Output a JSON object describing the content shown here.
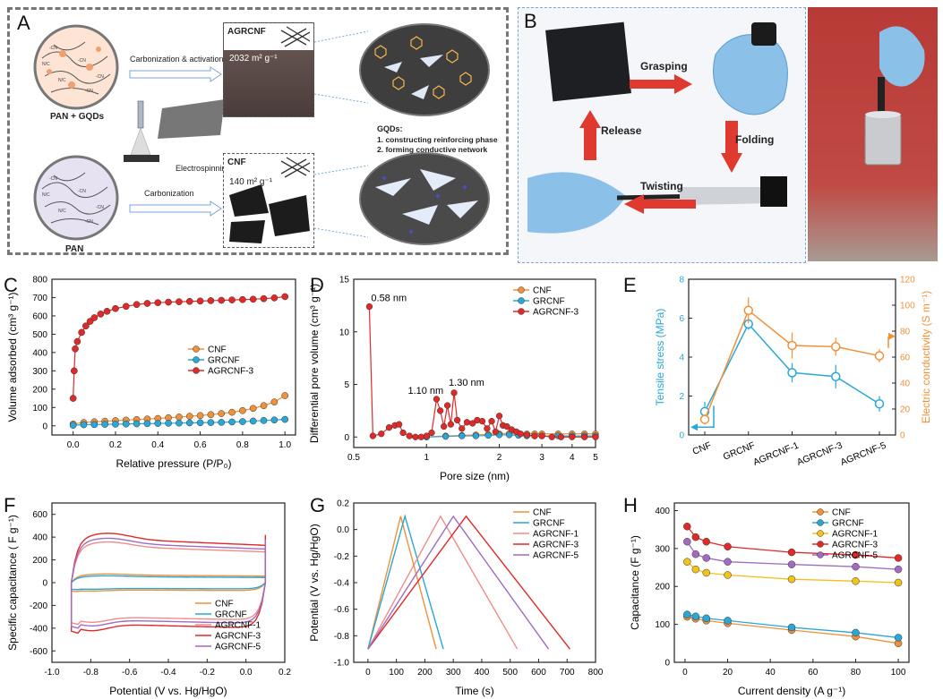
{
  "panel_a": {
    "label": "A",
    "pan_gqds": "PAN + GQDs",
    "pan": "PAN",
    "carb_act": "Carbonization & activation",
    "carb": "Carbonization",
    "electro": "Electrospinning",
    "agrcnf_title": "AGRCNF",
    "agrcnf_area": "2032 m² g⁻¹",
    "cnf_title": "CNF",
    "cnf_area": "140 m² g⁻¹",
    "gqds_title": "GQDs:",
    "gqds_1": "1. constructing reinforcing phase",
    "gqds_2": "2. forming conductive network",
    "molecule_tags": [
      "-CN",
      "-CN",
      "N/C",
      "-CN",
      "-CN",
      "N/C",
      "-CN",
      "-CN",
      "N/C",
      "-CN",
      "-CN",
      "N/C"
    ]
  },
  "panel_b": {
    "label": "B",
    "grasping": "Grasping",
    "folding": "Folding",
    "twisting": "Twisting",
    "release": "Release"
  },
  "colors": {
    "CNF": "#f0913a",
    "GRCNF": "#2aa7d6",
    "AGRCNF-1": "#f1c21b",
    "AGRCNF-3": "#e02a2a",
    "AGRCNF-5": "#a06cc0",
    "AGRCNF-1-F": "#f08c8c",
    "dash": "#777777"
  },
  "chart_data": [
    {
      "id": "C",
      "type": "scatter",
      "xlabel": "Relative pressure (P/P₀)",
      "ylabel": "Volume adsorbed (cm³ g⁻¹)",
      "xlim": [
        -0.1,
        1.05
      ],
      "ylim": [
        -50,
        800
      ],
      "xticks": [
        0.0,
        0.2,
        0.4,
        0.6,
        0.8,
        1.0
      ],
      "xtick_labels": [
        "0.0",
        "0.2",
        "0.4",
        "0.6",
        "0.8",
        "1.0"
      ],
      "yticks": [
        0,
        100,
        200,
        300,
        400,
        500,
        600,
        700,
        800
      ],
      "legend": "right",
      "series": [
        {
          "name": "CNF",
          "x": [
            0.0,
            0.05,
            0.1,
            0.15,
            0.2,
            0.25,
            0.3,
            0.35,
            0.4,
            0.45,
            0.5,
            0.55,
            0.6,
            0.65,
            0.7,
            0.75,
            0.8,
            0.85,
            0.9,
            0.95,
            1.0
          ],
          "y": [
            10,
            18,
            22,
            25,
            28,
            31,
            34,
            37,
            40,
            44,
            48,
            52,
            56,
            61,
            67,
            74,
            83,
            95,
            110,
            130,
            165
          ]
        },
        {
          "name": "GRCNF",
          "x": [
            0.0,
            0.05,
            0.1,
            0.15,
            0.2,
            0.25,
            0.3,
            0.35,
            0.4,
            0.45,
            0.5,
            0.55,
            0.6,
            0.65,
            0.7,
            0.75,
            0.8,
            0.85,
            0.9,
            0.95,
            1.0
          ],
          "y": [
            3,
            6,
            7,
            8,
            9,
            10,
            11,
            12,
            13,
            14,
            15,
            16,
            17,
            18,
            19,
            21,
            23,
            26,
            29,
            32,
            35
          ]
        },
        {
          "name": "AGRCNF-3",
          "x": [
            0.0,
            0.005,
            0.01,
            0.02,
            0.04,
            0.06,
            0.08,
            0.1,
            0.13,
            0.16,
            0.2,
            0.25,
            0.3,
            0.35,
            0.4,
            0.45,
            0.5,
            0.55,
            0.6,
            0.65,
            0.7,
            0.75,
            0.8,
            0.85,
            0.9,
            0.95,
            1.0
          ],
          "y": [
            150,
            300,
            420,
            460,
            510,
            545,
            570,
            590,
            610,
            625,
            640,
            652,
            662,
            668,
            672,
            675,
            677,
            679,
            681,
            683,
            685,
            687,
            689,
            691,
            694,
            698,
            705
          ]
        }
      ]
    },
    {
      "id": "D",
      "type": "line",
      "xlabel": "Pore size (nm)",
      "ylabel": "Differential pore volume (cm³ g⁻¹)",
      "xscale": "log",
      "xlim": [
        0.5,
        5
      ],
      "ylim": [
        -1,
        15
      ],
      "xticks": [
        0.5,
        1,
        2,
        3,
        4,
        5
      ],
      "xtick_labels": [
        "0.5",
        "1",
        "2",
        "3",
        "4",
        "5"
      ],
      "yticks": [
        0,
        5,
        10,
        15
      ],
      "legend": "top-right",
      "annotations": [
        "0.58 nm",
        "1.10 nm",
        "1.30 nm"
      ],
      "series": [
        {
          "name": "CNF",
          "x": [
            1.0,
            1.2,
            1.4,
            1.6,
            1.8,
            2.0,
            2.2,
            2.4,
            2.6,
            2.8,
            3.0,
            3.5,
            4.0,
            4.5,
            5.0
          ],
          "y": [
            0,
            0.1,
            0.15,
            0.2,
            0.25,
            0.3,
            0.35,
            0.35,
            0.3,
            0.3,
            0.3,
            0.3,
            0.3,
            0.3,
            0.3
          ]
        },
        {
          "name": "GRCNF",
          "x": [
            1.0,
            1.2,
            1.4,
            1.6,
            1.8,
            2.0,
            2.2,
            2.4,
            2.6,
            2.8,
            3.0,
            3.5,
            4.0,
            4.5,
            5.0
          ],
          "y": [
            0,
            0.05,
            0.1,
            0.1,
            0.15,
            0.2,
            0.2,
            0.15,
            0.1,
            0.1,
            0.1,
            0.1,
            0.1,
            0.1,
            0.1
          ]
        },
        {
          "name": "AGRCNF-3",
          "x": [
            0.58,
            0.6,
            0.65,
            0.7,
            0.74,
            0.77,
            0.8,
            0.85,
            0.9,
            0.95,
            1.0,
            1.05,
            1.1,
            1.14,
            1.18,
            1.22,
            1.26,
            1.3,
            1.34,
            1.4,
            1.47,
            1.55,
            1.62,
            1.7,
            1.78,
            1.86,
            1.93,
            2.0,
            2.07,
            2.15,
            2.25,
            2.35,
            2.45,
            2.6,
            2.8,
            3.0,
            3.3,
            3.6,
            4.0,
            4.5,
            5.0
          ],
          "y": [
            12.4,
            0.1,
            0.3,
            0.9,
            1.1,
            1.2,
            0.4,
            0.1,
            0.0,
            0.0,
            0.1,
            0.4,
            3.6,
            2.5,
            1.0,
            3.0,
            1.2,
            4.2,
            1.6,
            0.8,
            1.4,
            1.3,
            1.6,
            1.5,
            0.8,
            1.5,
            0.5,
            2.0,
            1.1,
            1.0,
            0.7,
            0.5,
            0.3,
            0.2,
            0.1,
            0.1,
            0.0,
            0.0,
            0.0,
            0.0,
            0.0
          ]
        }
      ]
    },
    {
      "id": "E",
      "type": "line",
      "categories": [
        "CNF",
        "GRCNF",
        "AGRCNF-1",
        "AGRCNF-3",
        "AGRCNF-5"
      ],
      "ylabel": "Tensile stress (MPa)",
      "y2label": "Electric conductivity (S m⁻¹)",
      "ylim": [
        0,
        8
      ],
      "y2lim": [
        0,
        120
      ],
      "yticks": [
        0,
        2,
        4,
        6,
        8
      ],
      "y2ticks": [
        0,
        20,
        40,
        60,
        80,
        100,
        120
      ],
      "series": [
        {
          "name": "Tensile stress",
          "axis": "left",
          "values": [
            1.2,
            5.7,
            3.2,
            3.0,
            1.6
          ],
          "errors": [
            0.5,
            0.3,
            0.5,
            0.6,
            0.4
          ]
        },
        {
          "name": "Electric conductivity",
          "axis": "right",
          "values": [
            12,
            96,
            69,
            68,
            61
          ],
          "errors": [
            4,
            10,
            10,
            7,
            5
          ]
        }
      ]
    },
    {
      "id": "F",
      "type": "line",
      "xlabel": "Potential (V vs. Hg/HgO)",
      "ylabel": "Specific capacitance ( F g⁻¹)",
      "xlim": [
        -1.0,
        0.2
      ],
      "ylim": [
        -700,
        700
      ],
      "xticks": [
        -1.0,
        -0.8,
        -0.6,
        -0.4,
        -0.2,
        0.0,
        0.2
      ],
      "xtick_labels": [
        "-1.0",
        "-0.8",
        "-0.6",
        "-0.4",
        "-0.2",
        "0.0",
        "0.2"
      ],
      "yticks": [
        -600,
        -400,
        -200,
        0,
        200,
        400,
        600
      ],
      "legend": "bottom-right",
      "series": [
        {
          "name": "CNF",
          "amplitude": 70
        },
        {
          "name": "GRCNF",
          "amplitude": 55
        },
        {
          "name": "AGRCNF-1",
          "amplitude": 330
        },
        {
          "name": "AGRCNF-3",
          "amplitude": 400
        },
        {
          "name": "AGRCNF-5",
          "amplitude": 360
        }
      ]
    },
    {
      "id": "G",
      "type": "line",
      "xlabel": "Time (s)",
      "ylabel": "Potential (V vs. Hg/HgO)",
      "xlim": [
        -50,
        800
      ],
      "ylim": [
        -1.0,
        0.2
      ],
      "xticks": [
        0,
        100,
        200,
        300,
        400,
        500,
        600,
        700,
        800
      ],
      "yticks": [
        -1.0,
        -0.8,
        -0.6,
        -0.4,
        -0.2,
        0.0,
        0.2
      ],
      "ytick_labels": [
        "-1.0",
        "-0.8",
        "-0.6",
        "-0.4",
        "-0.2",
        "0.0",
        "0.2"
      ],
      "legend": "top-right",
      "series": [
        {
          "name": "CNF",
          "peak_time": 115,
          "end_time": 240
        },
        {
          "name": "GRCNF",
          "peak_time": 130,
          "end_time": 265
        },
        {
          "name": "AGRCNF-1",
          "peak_time": 255,
          "end_time": 525
        },
        {
          "name": "AGRCNF-3",
          "peak_time": 345,
          "end_time": 710
        },
        {
          "name": "AGRCNF-5",
          "peak_time": 300,
          "end_time": 635
        }
      ]
    },
    {
      "id": "H",
      "type": "line",
      "xlabel": "Current density (A g⁻¹)",
      "ylabel": "Capacitance (F g⁻¹)",
      "xlim": [
        -5,
        105
      ],
      "ylim": [
        0,
        420
      ],
      "xticks": [
        0,
        20,
        40,
        60,
        80,
        100
      ],
      "yticks": [
        0,
        100,
        200,
        300,
        400
      ],
      "legend": "top-right",
      "x": [
        1,
        5,
        10,
        20,
        50,
        80,
        100
      ],
      "series": [
        {
          "name": "CNF",
          "values": [
            120,
            115,
            110,
            103,
            85,
            68,
            50
          ]
        },
        {
          "name": "GRCNF",
          "values": [
            126,
            121,
            116,
            110,
            92,
            78,
            65
          ]
        },
        {
          "name": "AGRCNF-1",
          "values": [
            265,
            245,
            236,
            230,
            219,
            214,
            210
          ]
        },
        {
          "name": "AGRCNF-3",
          "values": [
            358,
            330,
            318,
            305,
            290,
            283,
            275
          ]
        },
        {
          "name": "AGRCNF-5",
          "values": [
            318,
            285,
            275,
            265,
            258,
            252,
            245
          ]
        }
      ]
    }
  ]
}
